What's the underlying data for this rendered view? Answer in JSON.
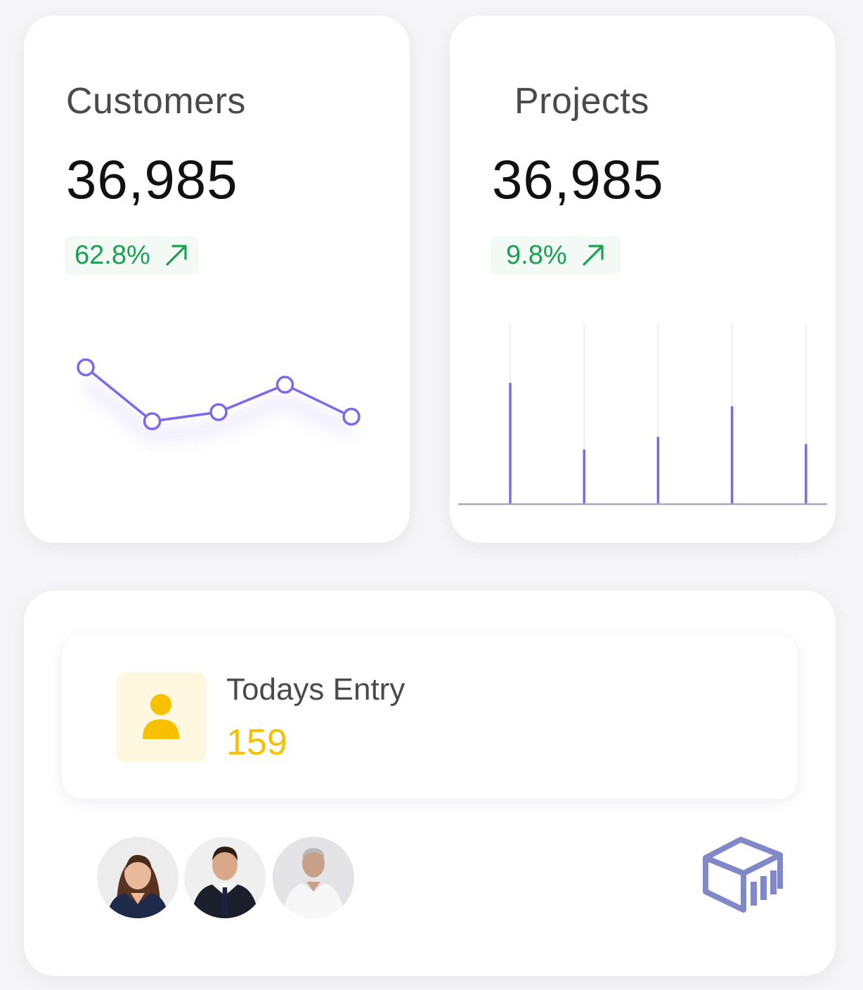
{
  "customers": {
    "label": "Customers",
    "value": "36,985",
    "trend": "62.8%",
    "trend_direction": "up",
    "trend_icon": "arrow-up-right-icon",
    "sparkline": [
      0.92,
      0.33,
      0.43,
      0.73,
      0.38
    ]
  },
  "projects": {
    "label": "Projects",
    "value": "36,985",
    "trend": "9.8%",
    "trend_direction": "up",
    "trend_icon": "arrow-up-right-icon",
    "bars": [
      0.67,
      0.3,
      0.37,
      0.54,
      0.33
    ]
  },
  "entry": {
    "label": "Todays Entry",
    "value": "159",
    "icon": "user-icon"
  },
  "avatars": [
    {
      "name": "avatar-woman",
      "icon": "person-photo"
    },
    {
      "name": "avatar-man-suit",
      "icon": "person-photo"
    },
    {
      "name": "avatar-older-man",
      "icon": "person-photo"
    }
  ],
  "logo": {
    "icon": "cube-logo-icon"
  },
  "colors": {
    "accent": "#7b68ee",
    "positive": "#1aa053",
    "highlight": "#f8c100",
    "card": "#ffffff"
  }
}
